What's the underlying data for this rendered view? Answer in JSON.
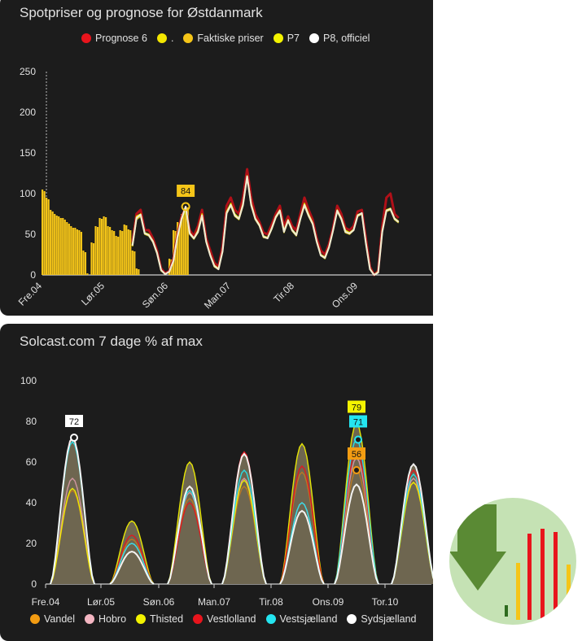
{
  "card1": {
    "title": "Spotpriser og prognose for Østdanmark",
    "legend": [
      {
        "label": "Prognose 6",
        "color": "#e8141c"
      },
      {
        "label": ".",
        "color": "#f3e600"
      },
      {
        "label": "Faktiske priser",
        "color": "#f5c518"
      },
      {
        "label": "P7",
        "color": "#f3f300"
      },
      {
        "label": "P8, officiel",
        "color": "#ffffff"
      }
    ]
  },
  "card2": {
    "title": "Solcast.com 7 dage % af max",
    "legend": [
      {
        "label": "Vandel",
        "color": "#f39c12"
      },
      {
        "label": "Hobro",
        "color": "#f4b6c2"
      },
      {
        "label": "Thisted",
        "color": "#f3f300"
      },
      {
        "label": "Vestlolland",
        "color": "#e8141c"
      },
      {
        "label": "Vestsjælland",
        "color": "#24e5f0"
      },
      {
        "label": "Sydsjælland",
        "color": "#ffffff"
      }
    ]
  },
  "badge": {
    "icon": "download-arrow-icon",
    "colors": [
      "#2e8b3a",
      "#e8141c",
      "#f5c518"
    ]
  },
  "chart_data": [
    {
      "type": "line",
      "title": "Spotpriser og prognose for Østdanmark",
      "xlabel": "",
      "ylabel": "",
      "ylim": [
        0,
        250
      ],
      "yticks": [
        0,
        50,
        100,
        150,
        200,
        250
      ],
      "xtick_labels": [
        "Fre.04",
        "Lør.05",
        "Søn.06",
        "Man.07",
        "Tir.08",
        "Ons.09"
      ],
      "x_hours": [
        0,
        2,
        4,
        6,
        8,
        10,
        12,
        14,
        16,
        18,
        20,
        22,
        24,
        26,
        28,
        30,
        32,
        34,
        36,
        38,
        40,
        42,
        44,
        46,
        48,
        50,
        52,
        54,
        56,
        58,
        60,
        62,
        64,
        66,
        68,
        70,
        72,
        74,
        76,
        78,
        80,
        82,
        84,
        86,
        88,
        90,
        92,
        94,
        96,
        98,
        100,
        102,
        104,
        106,
        108,
        110,
        112,
        114,
        116,
        118,
        120,
        122,
        124,
        126,
        128,
        130,
        132,
        134,
        136,
        138,
        140,
        142,
        144,
        146,
        148,
        150,
        152,
        154,
        156,
        158,
        160,
        162,
        164,
        166,
        168,
        170,
        172,
        174,
        176,
        178,
        180,
        182
      ],
      "series": [
        {
          "name": "Prognose 6",
          "values": [
            null,
            null,
            null,
            null,
            null,
            null,
            null,
            null,
            null,
            null,
            null,
            null,
            null,
            null,
            null,
            null,
            null,
            null,
            null,
            null,
            null,
            null,
            40,
            75,
            80,
            55,
            55,
            45,
            30,
            8,
            2,
            5,
            20,
            50,
            72,
            82,
            55,
            48,
            60,
            80,
            45,
            30,
            15,
            10,
            35,
            85,
            95,
            80,
            75,
            95,
            130,
            95,
            75,
            65,
            52,
            50,
            62,
            75,
            85,
            60,
            72,
            60,
            55,
            75,
            95,
            80,
            68,
            45,
            30,
            25,
            38,
            58,
            85,
            75,
            58,
            55,
            60,
            78,
            80,
            45,
            10,
            0,
            5,
            60,
            95,
            100,
            75,
            70
          ]
        },
        {
          "name": ".",
          "values": [
            null,
            null,
            null,
            null,
            null,
            null,
            null,
            null,
            null,
            null,
            null,
            null,
            null,
            null,
            null,
            null,
            null,
            null,
            null,
            null,
            null,
            null,
            38,
            72,
            75,
            52,
            50,
            42,
            28,
            6,
            1,
            4,
            18,
            48,
            70,
            80,
            52,
            45,
            55,
            75,
            42,
            25,
            12,
            8,
            30,
            78,
            88,
            75,
            70,
            88,
            122,
            88,
            70,
            62,
            48,
            46,
            58,
            72,
            80,
            55,
            68,
            56,
            50,
            70,
            88,
            75,
            64,
            42,
            25,
            22,
            35,
            55,
            80,
            70,
            55,
            52,
            56,
            74,
            76,
            40,
            8,
            0,
            4,
            55,
            80,
            82,
            70,
            66
          ]
        },
        {
          "name": "Faktiske priser",
          "values": [
            105,
            95,
            80,
            75,
            72,
            70,
            65,
            60,
            58,
            55,
            30,
            2,
            null,
            null,
            null,
            null,
            null,
            null,
            null,
            null,
            null,
            null,
            null,
            null,
            null,
            null,
            null,
            null,
            null,
            null,
            null,
            null,
            null,
            null,
            null,
            null,
            null,
            null,
            null,
            null,
            null,
            null,
            null,
            null,
            null,
            null,
            null,
            null,
            null,
            null,
            null,
            null,
            null,
            null,
            null,
            null,
            null,
            null,
            null,
            null,
            null,
            null,
            null,
            null,
            null,
            null,
            null,
            null,
            null,
            null,
            null,
            null,
            null,
            null,
            null,
            null,
            null,
            null,
            null,
            null,
            null,
            null,
            null,
            null,
            null,
            null,
            null,
            null,
            null,
            null,
            null,
            null
          ],
          "bars": true
        },
        {
          "name": "P7",
          "values": [
            null,
            null,
            null,
            null,
            null,
            null,
            null,
            null,
            null,
            null,
            null,
            null,
            null,
            null,
            null,
            null,
            null,
            null,
            null,
            null,
            null,
            null,
            35,
            68,
            72,
            50,
            48,
            40,
            26,
            5,
            1,
            4,
            16,
            46,
            68,
            78,
            50,
            44,
            52,
            72,
            40,
            24,
            10,
            7,
            28,
            75,
            85,
            72,
            68,
            85,
            120,
            85,
            68,
            60,
            46,
            45,
            56,
            70,
            78,
            52,
            66,
            54,
            48,
            68,
            85,
            72,
            62,
            40,
            24,
            20,
            34,
            54,
            78,
            68,
            52,
            50,
            55,
            72,
            75,
            38,
            7,
            0,
            3,
            52,
            78,
            80,
            68,
            64
          ]
        },
        {
          "name": "P8, officiel",
          "values": [
            null,
            null,
            null,
            null,
            null,
            null,
            null,
            null,
            null,
            null,
            null,
            null,
            null,
            null,
            null,
            null,
            null,
            null,
            null,
            null,
            null,
            null,
            36,
            70,
            74,
            51,
            49,
            41,
            27,
            6,
            1,
            4,
            17,
            47,
            69,
            84,
            51,
            45,
            53,
            73,
            41,
            24,
            11,
            7,
            29,
            76,
            86,
            73,
            69,
            86,
            121,
            86,
            69,
            61,
            47,
            45,
            57,
            71,
            79,
            53,
            67,
            55,
            49,
            69,
            86,
            73,
            63,
            41,
            24,
            21,
            34,
            55,
            79,
            69,
            53,
            51,
            55,
            73,
            76,
            39,
            7,
            0,
            3,
            53,
            79,
            81,
            69,
            65
          ]
        }
      ],
      "annotations": [
        {
          "text": "84",
          "series": "P8, officiel"
        }
      ]
    },
    {
      "type": "area",
      "title": "Solcast.com 7 dage % af max",
      "xlabel": "",
      "ylabel": "",
      "ylim": [
        0,
        100
      ],
      "yticks": [
        0,
        20,
        40,
        60,
        80,
        100
      ],
      "xtick_labels": [
        "Fre.04",
        "Lør.05",
        "Søn.06",
        "Man.07",
        "Tir.08",
        "Ons.09",
        "Tor.10"
      ],
      "day_peaks": {
        "Vandel": [
          46,
          22,
          42,
          48,
          55,
          56,
          50
        ],
        "Hobro": [
          52,
          20,
          45,
          52,
          40,
          62,
          52
        ],
        "Thisted": [
          47,
          31,
          60,
          51,
          69,
          79,
          50
        ],
        "Vestlolland": [
          72,
          24,
          40,
          65,
          58,
          66,
          56
        ],
        "Vestsjælland": [
          70,
          20,
          46,
          56,
          40,
          71,
          54
        ],
        "Sydsjælland": [
          72,
          16,
          48,
          64,
          36,
          49,
          59
        ]
      },
      "annotations": [
        {
          "text": "72",
          "series": "Sydsjælland"
        },
        {
          "text": "79",
          "series": "Thisted"
        },
        {
          "text": "71",
          "series": "Vestsjælland"
        },
        {
          "text": "56",
          "series": "Vandel"
        }
      ]
    }
  ]
}
